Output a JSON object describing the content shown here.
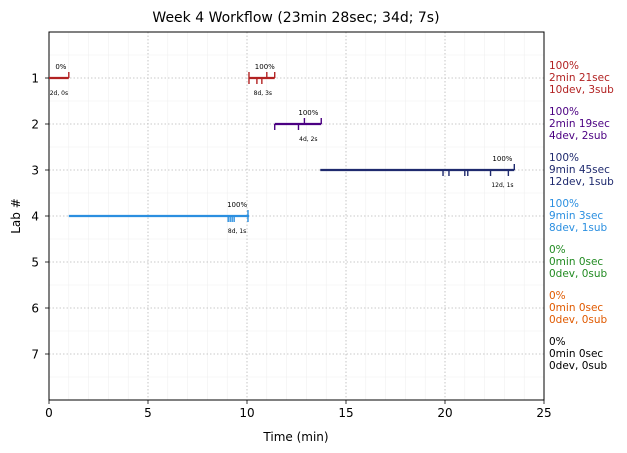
{
  "chart_data": {
    "type": "timeline",
    "title": "Week 4 Workflow (23min 28sec; 34d; 7s)",
    "xlabel": "Time (min)",
    "ylabel": "Lab #",
    "xlim": [
      0,
      25
    ],
    "ylim": [
      8,
      0
    ],
    "x_ticks": [
      0,
      5,
      10,
      15,
      20,
      25
    ],
    "y_ticks": [
      1,
      2,
      3,
      4,
      5,
      6,
      7
    ],
    "grid": true,
    "labs": [
      {
        "lab": 1,
        "color": "#b22222",
        "segments": [
          [
            0,
            1.0
          ],
          [
            10.1,
            11.4
          ]
        ],
        "dev_marks": [
          10.1,
          10.5,
          10.75
        ],
        "sub_marks": [
          1.0,
          10.1,
          11.0,
          11.4
        ],
        "progress_labels": [
          {
            "x": 0.6,
            "text": "0%"
          },
          {
            "x": 10.9,
            "text": "100%"
          }
        ],
        "detail_labels": [
          {
            "x": 0.5,
            "text": "2d, 0s"
          },
          {
            "x": 10.8,
            "text": "8d, 3s"
          }
        ],
        "summary": [
          "100%",
          "2min 21sec",
          "10dev, 3sub"
        ]
      },
      {
        "lab": 2,
        "color": "#4b0082",
        "segments": [
          [
            11.4,
            13.75
          ]
        ],
        "dev_marks": [
          11.4,
          12.6
        ],
        "sub_marks": [
          12.9,
          13.75
        ],
        "progress_labels": [
          {
            "x": 13.1,
            "text": "100%"
          }
        ],
        "detail_labels": [
          {
            "x": 13.1,
            "text": "4d, 2s"
          }
        ],
        "summary": [
          "100%",
          "2min 19sec",
          "4dev, 2sub"
        ]
      },
      {
        "lab": 3,
        "color": "#1f2a6e",
        "segments": [
          [
            13.7,
            23.5
          ]
        ],
        "dev_marks": [
          19.9,
          20.2,
          21.0,
          21.15,
          22.3,
          23.2
        ],
        "sub_marks": [
          23.5
        ],
        "progress_labels": [
          {
            "x": 22.9,
            "text": "100%"
          }
        ],
        "detail_labels": [
          {
            "x": 22.9,
            "text": "12d, 1s"
          }
        ],
        "summary": [
          "100%",
          "9min 45sec",
          "12dev, 1sub"
        ]
      },
      {
        "lab": 4,
        "color": "#2b8fe0",
        "segments": [
          [
            1.0,
            10.1
          ]
        ],
        "dev_marks": [
          9.05,
          9.15,
          9.25,
          9.35,
          10.05
        ],
        "sub_marks": [
          10.05
        ],
        "progress_labels": [
          {
            "x": 9.5,
            "text": "100%"
          }
        ],
        "detail_labels": [
          {
            "x": 9.5,
            "text": "8d, 1s"
          }
        ],
        "summary": [
          "100%",
          "9min 3sec",
          "8dev, 1sub"
        ]
      },
      {
        "lab": 5,
        "color": "#228b22",
        "segments": [],
        "dev_marks": [],
        "sub_marks": [],
        "progress_labels": [],
        "detail_labels": [],
        "summary": [
          "0%",
          "0min 0sec",
          "0dev, 0sub"
        ]
      },
      {
        "lab": 6,
        "color": "#e05a00",
        "segments": [],
        "dev_marks": [],
        "sub_marks": [],
        "progress_labels": [],
        "detail_labels": [],
        "summary": [
          "0%",
          "0min 0sec",
          "0dev, 0sub"
        ]
      },
      {
        "lab": 7,
        "color": "#000000",
        "segments": [],
        "dev_marks": [],
        "sub_marks": [],
        "progress_labels": [],
        "detail_labels": [],
        "summary": [
          "0%",
          "0min 0sec",
          "0dev, 0sub"
        ]
      }
    ]
  }
}
